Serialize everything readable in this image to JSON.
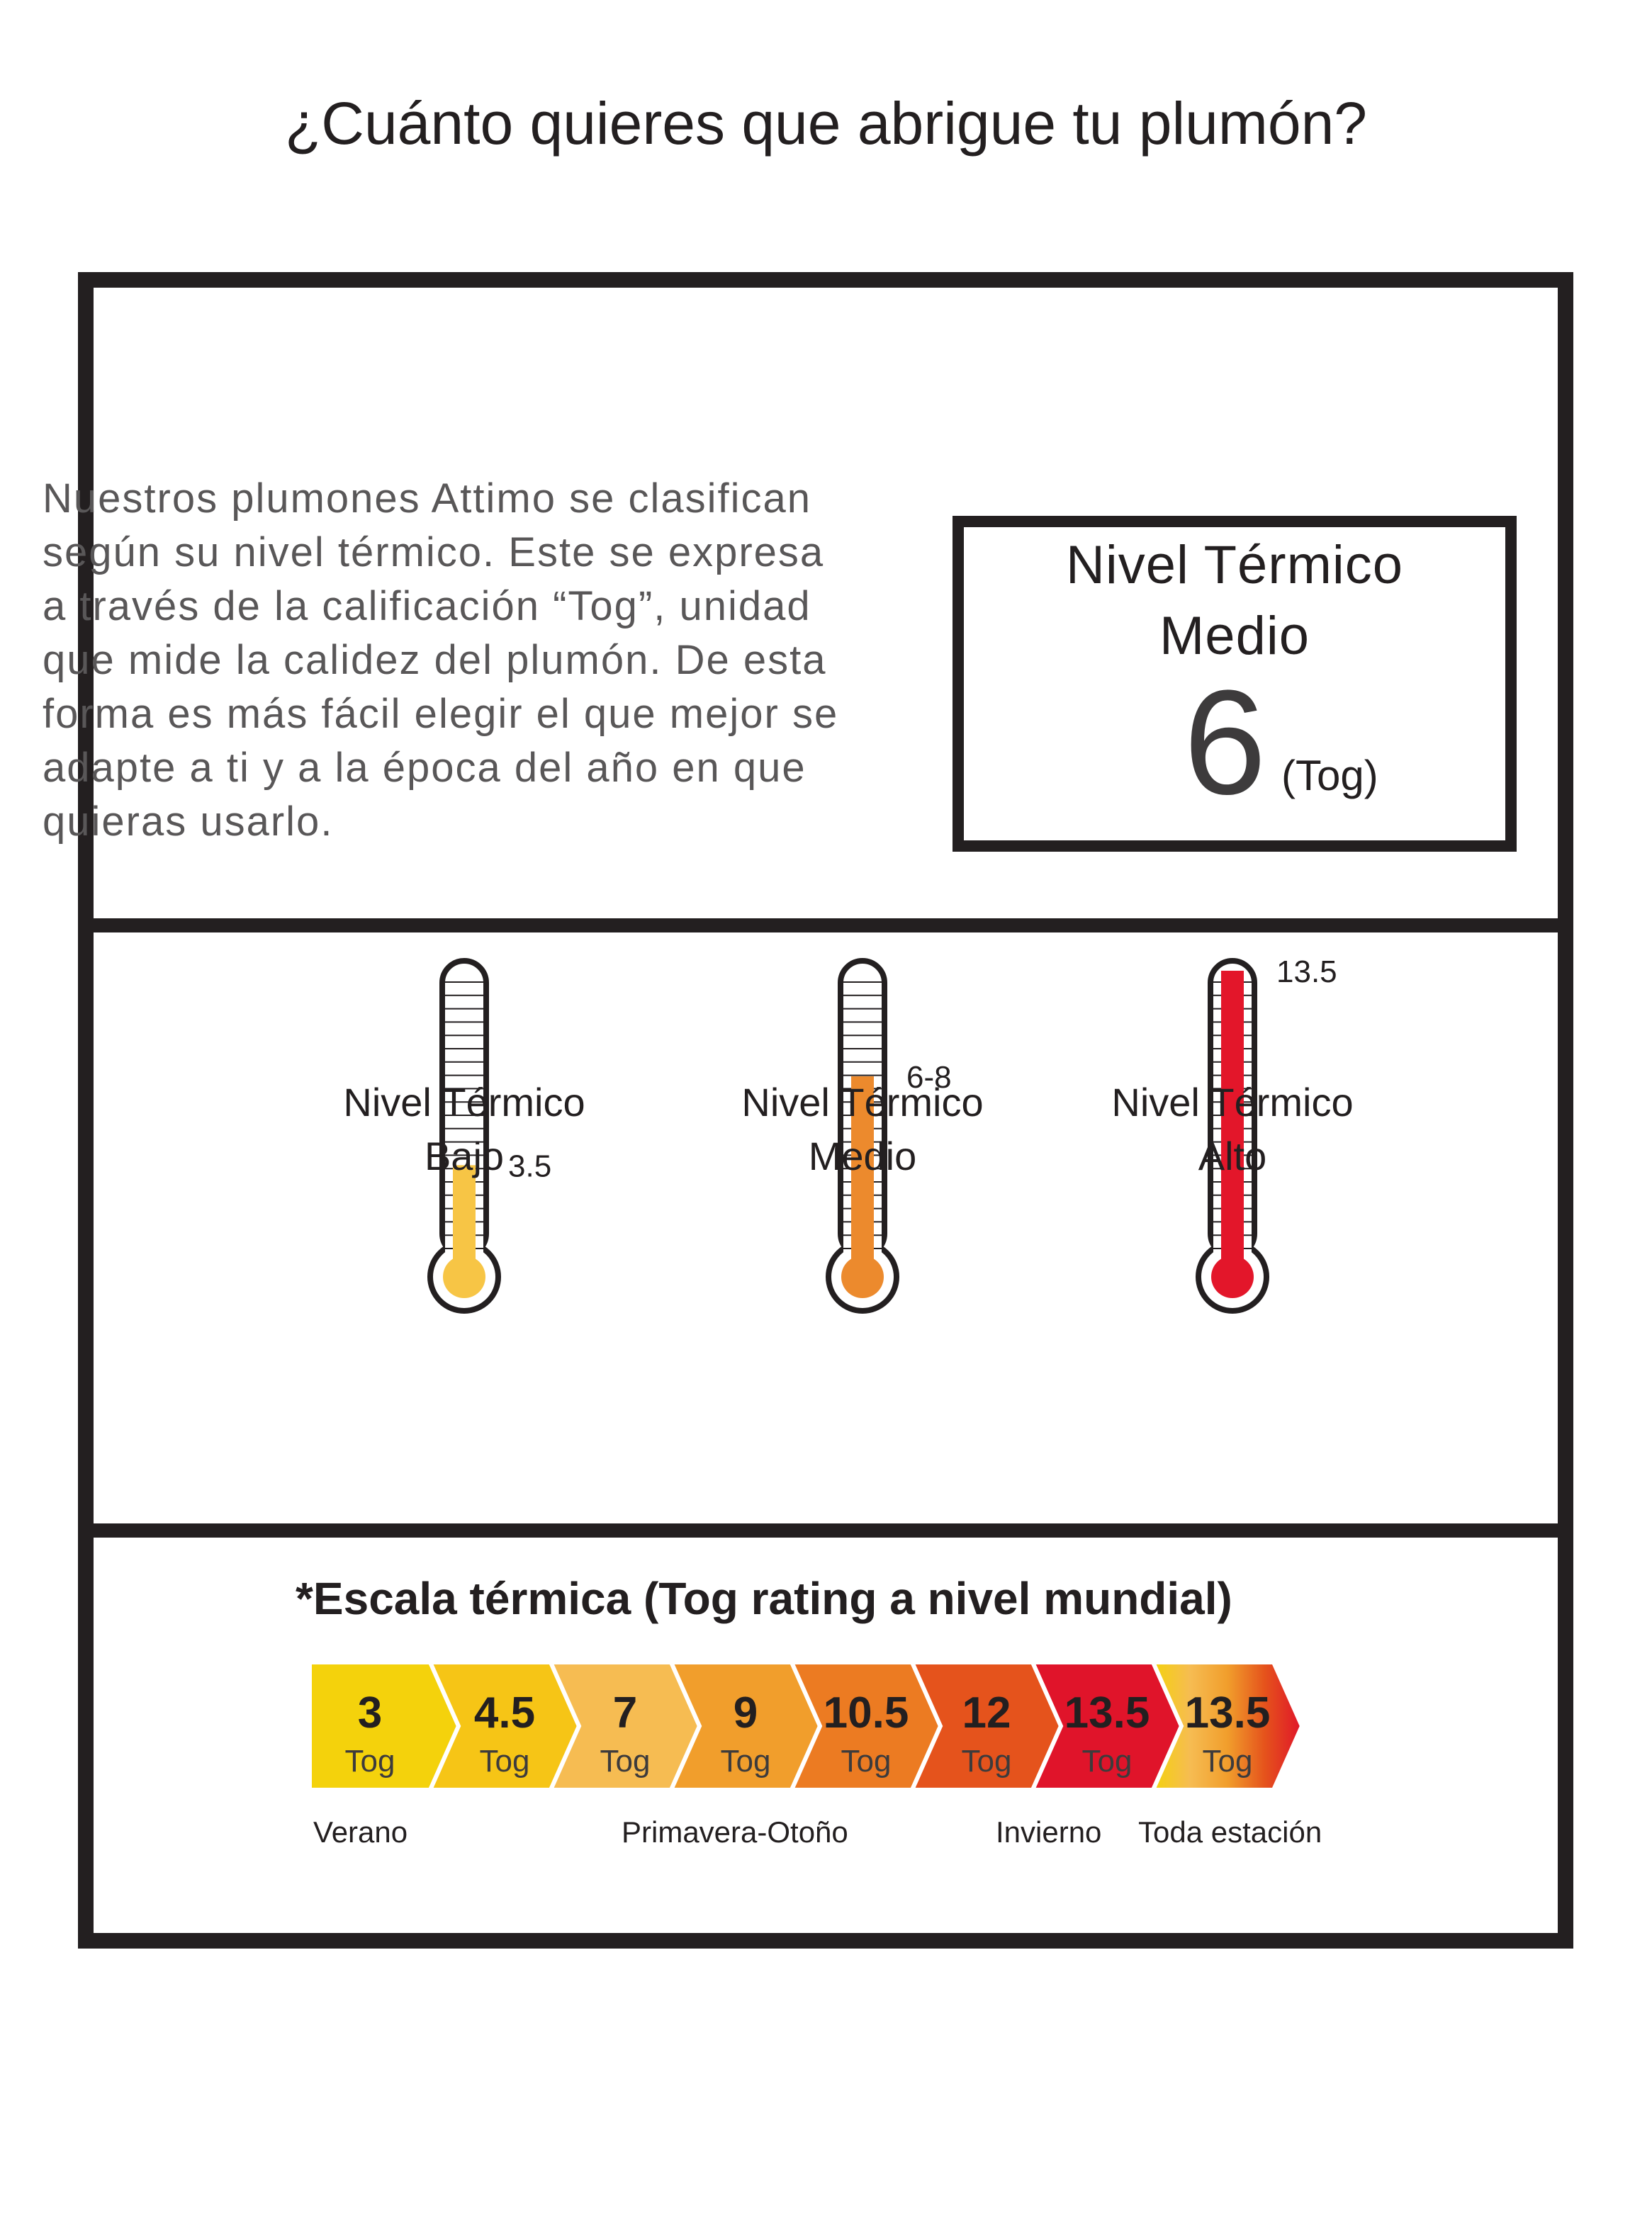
{
  "headline": "¿Cuánto quieres que abrigue tu plumón?",
  "intro": "Nuestros plumones Attimo se clasifican según su nivel térmico. Este se expresa a través de la calificación “Tog”, unidad que mide la calidez del plumón. De esta forma es más fácil elegir el que mejor se adapte a ti y a la época del año en que quieras usarlo.",
  "level_box": {
    "title_line1": "Nivel Térmico",
    "title_line2": "Medio",
    "value": "6",
    "unit": "(Tog)"
  },
  "thermometers": [
    {
      "label": "3.5",
      "level": 0.3,
      "color": "#f7c545",
      "caption_line1": "Nivel Térmico",
      "caption_line2": "Bajo"
    },
    {
      "label": "6-8",
      "level": 0.62,
      "color": "#ec8a2d",
      "caption_line1": "Nivel Térmico",
      "caption_line2": "Medio"
    },
    {
      "label": "13.5",
      "level": 1.0,
      "color": "#e3162a",
      "caption_line1": "Nivel Térmico",
      "caption_line2": "Alto"
    }
  ],
  "scale": {
    "title": "*Escala térmica (Tog rating a nivel mundial)",
    "unit": "Tog",
    "chevrons": [
      {
        "value": "3",
        "color": "#f4d20c"
      },
      {
        "value": "4.5",
        "color": "#f6c516"
      },
      {
        "value": "7",
        "color": "#f6bc52"
      },
      {
        "value": "9",
        "color": "#f19e2c"
      },
      {
        "value": "10.5",
        "color": "#ec7b22"
      },
      {
        "value": "12",
        "color": "#e5531c"
      },
      {
        "value": "13.5",
        "color": "#e0142a"
      },
      {
        "value": "13.5",
        "color": "gradient"
      }
    ],
    "seasons": [
      "Verano",
      "Primavera-Otoño",
      "Invierno",
      "Toda estación"
    ]
  }
}
